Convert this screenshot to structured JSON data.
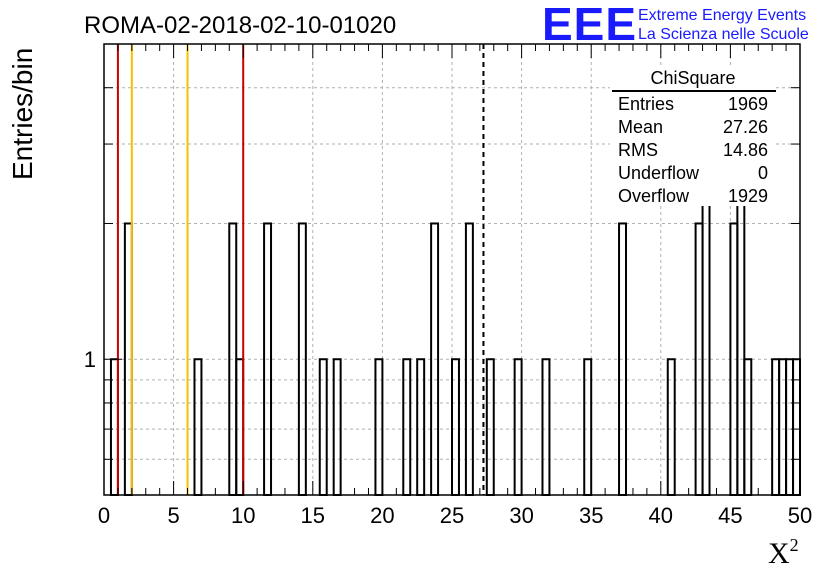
{
  "chart_data": {
    "type": "histogram",
    "title": "ROMA-02-2018-02-10-01020",
    "xlabel_main": "X",
    "xlabel_sup": "2",
    "ylabel": "Entries/bin",
    "xlim": [
      0,
      50
    ],
    "ylim": [
      0.5,
      5
    ],
    "yscale": "log",
    "y_tick_labels": [
      {
        "value": 1,
        "label": "1"
      }
    ],
    "x_ticks": [
      0,
      5,
      10,
      15,
      20,
      25,
      30,
      35,
      40,
      45,
      50
    ],
    "grid": true,
    "bin_width": 0.5,
    "bins": [
      {
        "x": 0.5,
        "y": 1
      },
      {
        "x": 1.5,
        "y": 2
      },
      {
        "x": 6.5,
        "y": 1
      },
      {
        "x": 9.0,
        "y": 2
      },
      {
        "x": 9.5,
        "y": 1
      },
      {
        "x": 11.5,
        "y": 2
      },
      {
        "x": 14.0,
        "y": 2
      },
      {
        "x": 15.5,
        "y": 1
      },
      {
        "x": 16.5,
        "y": 1
      },
      {
        "x": 19.5,
        "y": 1
      },
      {
        "x": 21.5,
        "y": 1
      },
      {
        "x": 22.5,
        "y": 1
      },
      {
        "x": 23.5,
        "y": 2
      },
      {
        "x": 25.0,
        "y": 1
      },
      {
        "x": 26.0,
        "y": 2
      },
      {
        "x": 27.5,
        "y": 1
      },
      {
        "x": 29.5,
        "y": 1
      },
      {
        "x": 31.5,
        "y": 1
      },
      {
        "x": 34.5,
        "y": 1
      },
      {
        "x": 37.0,
        "y": 2
      },
      {
        "x": 40.5,
        "y": 1
      },
      {
        "x": 42.5,
        "y": 2
      },
      {
        "x": 43.0,
        "y": 4
      },
      {
        "x": 45.0,
        "y": 2
      },
      {
        "x": 45.5,
        "y": 4
      },
      {
        "x": 46.0,
        "y": 1
      },
      {
        "x": 48.0,
        "y": 1
      },
      {
        "x": 48.5,
        "y": 1
      },
      {
        "x": 49.0,
        "y": 1
      },
      {
        "x": 49.5,
        "y": 1
      }
    ],
    "vertical_lines": [
      {
        "x": 1.0,
        "color": "#cc0000",
        "style": "solid"
      },
      {
        "x": 2.0,
        "color": "#f2c200",
        "style": "solid"
      },
      {
        "x": 6.0,
        "color": "#f2c200",
        "style": "solid"
      },
      {
        "x": 10.0,
        "color": "#cc0000",
        "style": "solid"
      },
      {
        "x": 27.26,
        "color": "#000000",
        "style": "dashed"
      }
    ],
    "stats_box": {
      "title": "ChiSquare",
      "rows": [
        {
          "label": "Entries",
          "value": "1969"
        },
        {
          "label": "Mean",
          "value": "27.26"
        },
        {
          "label": "RMS",
          "value": "14.86"
        },
        {
          "label": "Underflow",
          "value": "0"
        },
        {
          "label": "Overflow",
          "value": "1929"
        }
      ]
    }
  },
  "logo": {
    "big": "EEE",
    "line1": "Extreme Energy Events",
    "line2": "La Scienza nelle Scuole",
    "color": "#1a1aff"
  }
}
